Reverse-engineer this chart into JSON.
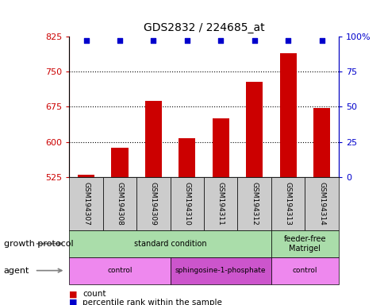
{
  "title": "GDS2832 / 224685_at",
  "samples": [
    "GSM194307",
    "GSM194308",
    "GSM194309",
    "GSM194310",
    "GSM194311",
    "GSM194312",
    "GSM194313",
    "GSM194314"
  ],
  "bar_values": [
    530,
    587,
    688,
    607,
    651,
    728,
    790,
    672
  ],
  "percentile_values": [
    97,
    97,
    97,
    97,
    97,
    97,
    97,
    97
  ],
  "bar_color": "#cc0000",
  "percentile_color": "#0000cc",
  "ylim_left": [
    525,
    825
  ],
  "ylim_right": [
    0,
    100
  ],
  "yticks_left": [
    525,
    600,
    675,
    750,
    825
  ],
  "yticks_right": [
    0,
    25,
    50,
    75,
    100
  ],
  "ytick_labels_right": [
    "0",
    "25",
    "50",
    "75",
    "100%"
  ],
  "hlines": [
    600,
    675,
    750
  ],
  "growth_regions": [
    {
      "text": "standard condition",
      "start": 0,
      "end": 6,
      "color": "#aaddaa"
    },
    {
      "text": "feeder-free\nMatrigel",
      "start": 6,
      "end": 8,
      "color": "#aaddaa"
    }
  ],
  "agent_regions": [
    {
      "text": "control",
      "start": 0,
      "end": 3,
      "color": "#ee88ee"
    },
    {
      "text": "sphingosine-1-phosphate",
      "start": 3,
      "end": 6,
      "color": "#cc55cc"
    },
    {
      "text": "control",
      "start": 6,
      "end": 8,
      "color": "#ee88ee"
    }
  ],
  "legend_count_color": "#cc0000",
  "legend_percentile_color": "#0000cc",
  "left_axis_color": "#cc0000",
  "right_axis_color": "#0000cc",
  "row_label_growth": "growth protocol",
  "row_label_agent": "agent"
}
